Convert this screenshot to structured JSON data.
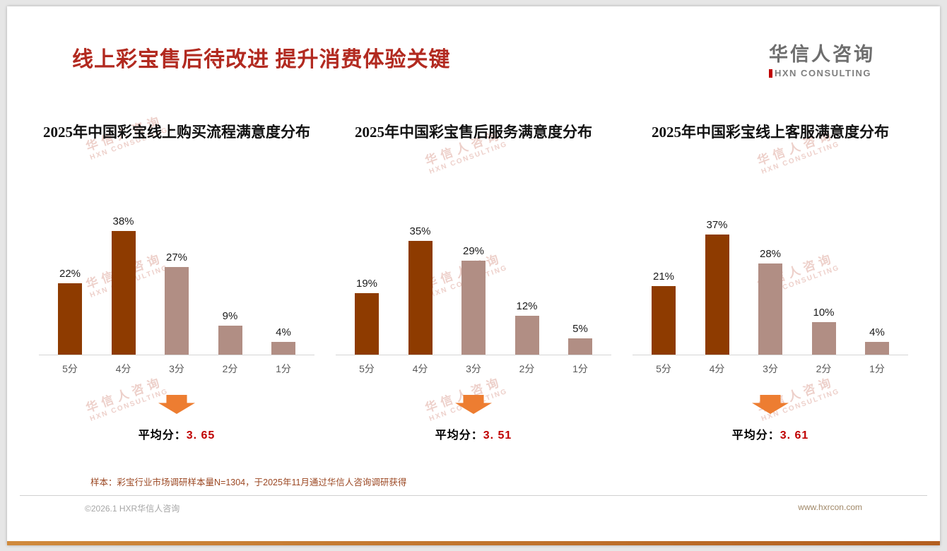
{
  "page": {
    "title": "线上彩宝售后待改进 提升消费体验关键",
    "logo": {
      "cn": "华信人咨询",
      "en": "HXN CONSULTING"
    },
    "watermark_cn": "华信人咨询",
    "watermark_en": "HXN CONSULTING",
    "footnote": "样本：彩宝行业市场调研样本量N=1304，于2025年11月通过华信人咨询调研获得",
    "footer_left": "©2026.1 HXR华信人咨询",
    "footer_right": "www.hxrcon.com"
  },
  "colors": {
    "title_red": "#b22a20",
    "bar_dark": "#8e3b00",
    "bar_light": "#b18e84",
    "arrow": "#ed7d31",
    "avg_red": "#c00000"
  },
  "chart_data": [
    {
      "type": "bar",
      "title": "2025年中国彩宝线上购买流程满意度分布",
      "categories": [
        "5分",
        "4分",
        "3分",
        "2分",
        "1分"
      ],
      "values": [
        22,
        38,
        27,
        9,
        4
      ],
      "unit": "%",
      "ylim": [
        0,
        40
      ],
      "grid": false,
      "avg_label": "平均分：",
      "avg_value": "3. 65"
    },
    {
      "type": "bar",
      "title": "2025年中国彩宝售后服务满意度分布",
      "categories": [
        "5分",
        "4分",
        "3分",
        "2分",
        "1分"
      ],
      "values": [
        19,
        35,
        29,
        12,
        5
      ],
      "unit": "%",
      "ylim": [
        0,
        40
      ],
      "grid": false,
      "avg_label": "平均分：",
      "avg_value": "3. 51"
    },
    {
      "type": "bar",
      "title": "2025年中国彩宝线上客服满意度分布",
      "categories": [
        "5分",
        "4分",
        "3分",
        "2分",
        "1分"
      ],
      "values": [
        21,
        37,
        28,
        10,
        4
      ],
      "unit": "%",
      "ylim": [
        0,
        40
      ],
      "grid": false,
      "avg_label": "平均分：",
      "avg_value": "3. 61"
    }
  ]
}
